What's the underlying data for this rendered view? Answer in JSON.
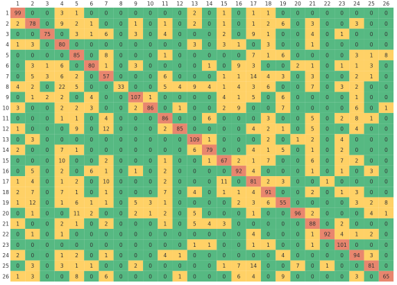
{
  "chart_data": {
    "type": "heatmap",
    "x_labels": [
      "1",
      "2",
      "3",
      "4",
      "5",
      "6",
      "7",
      "8",
      "9",
      "10",
      "11",
      "12",
      "13",
      "14",
      "15",
      "16",
      "17",
      "18",
      "19",
      "20",
      "21",
      "22",
      "23",
      "24",
      "25",
      "26"
    ],
    "y_labels": [
      "1",
      "2",
      "3",
      "4",
      "5",
      "6",
      "7",
      "8",
      "9",
      "10",
      "11",
      "12",
      "13",
      "14",
      "15",
      "16",
      "17",
      "18",
      "19",
      "20",
      "21",
      "22",
      "23",
      "24",
      "25",
      "26"
    ],
    "values": [
      [
        99,
        0,
        0,
        3,
        1,
        0,
        0,
        0,
        0,
        0,
        0,
        0,
        2,
        0,
        1,
        0,
        1,
        1,
        0,
        0,
        0,
        0,
        0,
        0,
        0,
        0
      ],
      [
        2,
        78,
        0,
        9,
        2,
        1,
        0,
        0,
        1,
        0,
        1,
        0,
        2,
        0,
        1,
        0,
        1,
        2,
        6,
        0,
        3,
        0,
        0,
        3,
        0,
        0
      ],
      [
        0,
        0,
        75,
        0,
        3,
        1,
        6,
        0,
        3,
        0,
        4,
        0,
        0,
        0,
        2,
        0,
        9,
        1,
        0,
        0,
        4,
        0,
        1,
        0,
        0,
        0
      ],
      [
        1,
        3,
        0,
        80,
        0,
        0,
        0,
        0,
        0,
        0,
        0,
        0,
        3,
        0,
        3,
        1,
        0,
        3,
        0,
        0,
        1,
        0,
        0,
        0,
        0,
        0
      ],
      [
        0,
        0,
        0,
        0,
        85,
        0,
        8,
        0,
        0,
        0,
        1,
        0,
        0,
        0,
        0,
        0,
        7,
        1,
        6,
        0,
        0,
        0,
        0,
        3,
        1,
        8
      ],
      [
        0,
        3,
        1,
        6,
        0,
        80,
        1,
        0,
        3,
        0,
        0,
        0,
        0,
        1,
        0,
        9,
        3,
        0,
        0,
        2,
        1,
        0,
        1,
        1,
        3,
        0
      ],
      [
        0,
        5,
        3,
        6,
        2,
        0,
        57,
        0,
        0,
        0,
        6,
        0,
        0,
        0,
        1,
        1,
        14,
        4,
        3,
        0,
        3,
        0,
        0,
        2,
        1,
        0
      ],
      [
        4,
        2,
        0,
        22,
        5,
        0,
        0,
        33,
        0,
        0,
        5,
        4,
        9,
        4,
        1,
        4,
        3,
        6,
        0,
        0,
        7,
        0,
        3,
        2,
        0,
        0
      ],
      [
        0,
        1,
        2,
        2,
        0,
        4,
        0,
        0,
        107,
        1,
        0,
        0,
        0,
        0,
        4,
        1,
        5,
        0,
        6,
        0,
        0,
        0,
        0,
        1,
        0,
        0
      ],
      [
        3,
        0,
        0,
        2,
        2,
        3,
        0,
        0,
        2,
        86,
        0,
        1,
        0,
        0,
        2,
        9,
        0,
        0,
        7,
        0,
        0,
        0,
        0,
        6,
        0,
        1
      ],
      [
        0,
        0,
        0,
        1,
        1,
        0,
        4,
        0,
        0,
        0,
        86,
        0,
        0,
        6,
        0,
        0,
        0,
        3,
        0,
        0,
        5,
        0,
        2,
        8,
        1,
        0
      ],
      [
        1,
        0,
        0,
        0,
        9,
        0,
        12,
        0,
        0,
        0,
        2,
        85,
        0,
        0,
        0,
        0,
        4,
        2,
        1,
        0,
        5,
        0,
        0,
        4,
        0,
        0
      ],
      [
        0,
        3,
        0,
        0,
        0,
        0,
        0,
        0,
        0,
        0,
        0,
        0,
        109,
        1,
        0,
        0,
        0,
        2,
        0,
        1,
        2,
        0,
        4,
        0,
        0,
        0
      ],
      [
        2,
        0,
        0,
        7,
        1,
        0,
        0,
        0,
        0,
        0,
        0,
        0,
        6,
        79,
        0,
        0,
        4,
        1,
        5,
        0,
        1,
        0,
        2,
        0,
        0,
        0
      ],
      [
        0,
        0,
        0,
        10,
        0,
        0,
        2,
        0,
        0,
        0,
        1,
        0,
        0,
        1,
        67,
        2,
        1,
        7,
        0,
        0,
        6,
        0,
        7,
        2,
        0,
        0
      ],
      [
        0,
        5,
        0,
        2,
        0,
        6,
        1,
        0,
        1,
        0,
        2,
        0,
        0,
        0,
        0,
        92,
        4,
        0,
        0,
        0,
        1,
        0,
        1,
        0,
        3,
        0
      ],
      [
        1,
        4,
        0,
        1,
        2,
        0,
        10,
        0,
        0,
        0,
        2,
        0,
        0,
        0,
        11,
        0,
        81,
        2,
        3,
        0,
        0,
        1,
        0,
        0,
        0,
        0
      ],
      [
        2,
        7,
        0,
        7,
        1,
        0,
        1,
        0,
        0,
        0,
        7,
        0,
        4,
        0,
        1,
        1,
        4,
        91,
        0,
        0,
        2,
        0,
        1,
        3,
        0,
        0
      ],
      [
        1,
        12,
        0,
        1,
        6,
        1,
        1,
        0,
        5,
        3,
        1,
        0,
        0,
        0,
        0,
        2,
        3,
        6,
        55,
        0,
        0,
        0,
        0,
        3,
        2,
        8
      ],
      [
        0,
        1,
        0,
        0,
        11,
        2,
        0,
        0,
        2,
        1,
        2,
        0,
        5,
        0,
        0,
        0,
        1,
        0,
        0,
        96,
        2,
        0,
        0,
        0,
        4,
        1
      ],
      [
        1,
        0,
        0,
        2,
        1,
        0,
        2,
        0,
        0,
        0,
        1,
        0,
        5,
        4,
        3,
        0,
        0,
        0,
        0,
        0,
        88,
        0,
        2,
        0,
        0,
        0
      ],
      [
        0,
        1,
        0,
        1,
        0,
        0,
        0,
        0,
        0,
        0,
        0,
        0,
        0,
        0,
        0,
        0,
        4,
        0,
        0,
        0,
        1,
        92,
        4,
        1,
        2,
        0
      ],
      [
        0,
        0,
        0,
        0,
        0,
        0,
        0,
        0,
        0,
        0,
        0,
        0,
        1,
        1,
        0,
        0,
        1,
        1,
        0,
        0,
        1,
        0,
        101,
        0,
        0,
        0
      ],
      [
        2,
        0,
        0,
        1,
        2,
        0,
        1,
        0,
        0,
        0,
        4,
        1,
        0,
        0,
        0,
        0,
        0,
        0,
        4,
        0,
        0,
        0,
        0,
        94,
        3,
        0
      ],
      [
        0,
        3,
        0,
        3,
        1,
        1,
        0,
        0,
        2,
        0,
        0,
        0,
        0,
        0,
        1,
        7,
        14,
        0,
        0,
        7,
        0,
        1,
        0,
        0,
        81,
        0
      ],
      [
        1,
        3,
        0,
        0,
        8,
        0,
        6,
        0,
        0,
        0,
        0,
        1,
        0,
        0,
        0,
        6,
        4,
        0,
        9,
        0,
        0,
        0,
        0,
        3,
        0,
        65
      ]
    ],
    "color_scale": {
      "low": "#56b982",
      "mid": "#ffd166",
      "high": "#e8866e"
    },
    "grid": false,
    "title": "",
    "xlabel": "",
    "ylabel": ""
  }
}
